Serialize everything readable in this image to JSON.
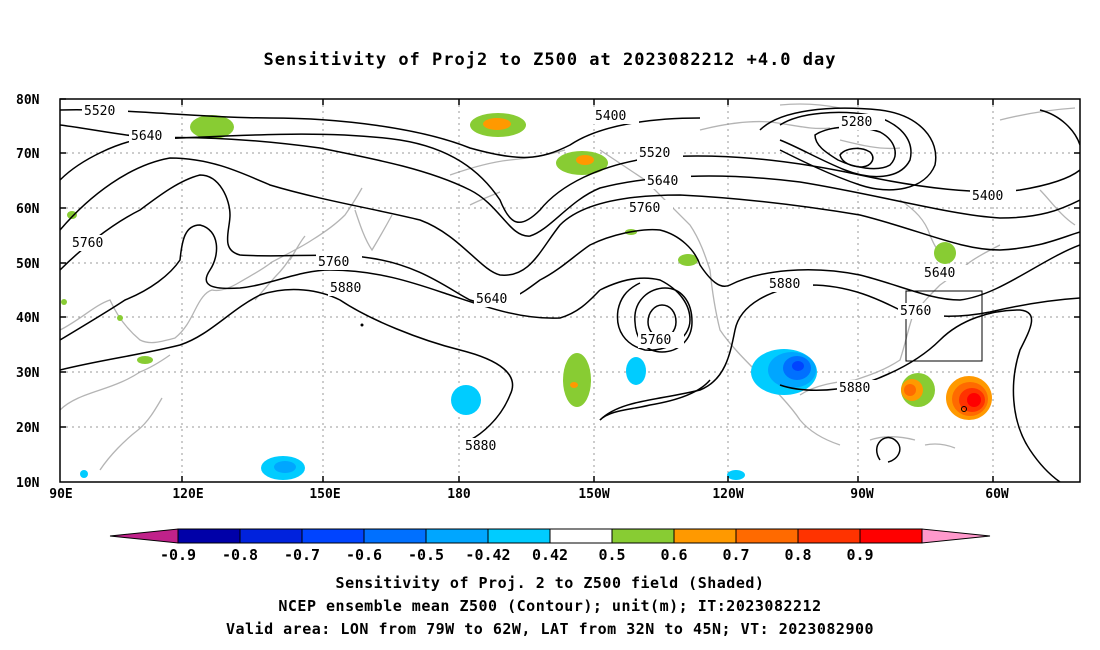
{
  "title": "Sensitivity of Proj2 to Z500 at 2023082212 +4.0 day",
  "lat_labels": [
    "80N",
    "70N",
    "60N",
    "50N",
    "40N",
    "30N",
    "20N",
    "10N"
  ],
  "lon_labels": [
    "90E",
    "120E",
    "150E",
    "180",
    "150W",
    "120W",
    "90W",
    "60W"
  ],
  "contour_labels": {
    "c5520_w": "5520",
    "c5640_w": "5640",
    "c5760_w": "5760",
    "c5760_c": "5760",
    "c5880_c": "5880",
    "c5640_c": "5640",
    "c5880_s": "5880",
    "c5400_n": "5400",
    "c5520_n": "5520",
    "c5640_n": "5640",
    "c5760_n": "5760",
    "c5760_low": "5760",
    "c5280": "5280",
    "c5400_e": "5400",
    "c5880_e": "5880",
    "c5640_e": "5640",
    "c5760_e": "5760",
    "c5880_se": "5880"
  },
  "colorbar": {
    "labels": [
      "-0.9",
      "-0.8",
      "-0.7",
      "-0.6",
      "-0.5",
      "-0.42",
      "0.42",
      "0.5",
      "0.6",
      "0.7",
      "0.8",
      "0.9"
    ],
    "colors": [
      "#0000a8",
      "#0022dd",
      "#0044ff",
      "#0070ff",
      "#00a6ff",
      "#00ccff",
      "#ffffff",
      "#88cc33",
      "#ff9900",
      "#ff6a00",
      "#ff3300",
      "#ff0000"
    ],
    "low_end_color": "#c0228a",
    "high_end_color": "#ff99cc"
  },
  "captions": [
    "Sensitivity of Proj. 2 to Z500 field (Shaded)",
    "NCEP ensemble mean Z500 (Contour); unit(m); IT:2023082212",
    "Valid area: LON from 79W to 62W, LAT from 32N to 45N; VT: 2023082900"
  ]
}
